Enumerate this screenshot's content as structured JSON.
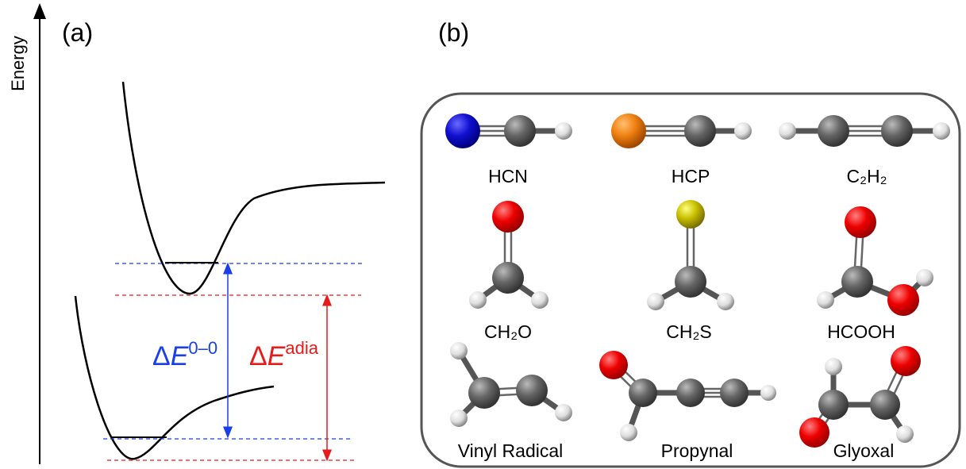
{
  "panel_a": {
    "label": "(a)",
    "axis_label": "Energy",
    "delta_e_00": {
      "delta": "Δ",
      "variable": "E",
      "superscript": "0–0"
    },
    "delta_e_adia": {
      "delta": "Δ",
      "variable": "E",
      "superscript": "adia"
    }
  },
  "panel_b": {
    "label": "(b)",
    "molecules": [
      "HCN",
      "HCP",
      "C₂H₂",
      "CH₂O",
      "CH₂S",
      "HCOOH",
      "Vinyl Radical",
      "Propynal",
      "Glyoxal"
    ]
  }
}
